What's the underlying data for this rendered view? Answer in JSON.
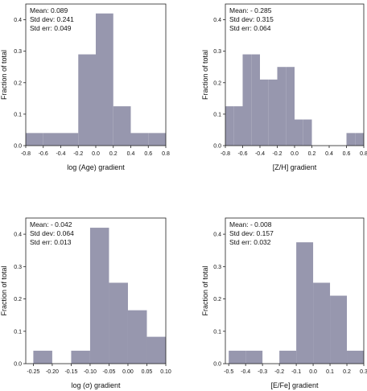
{
  "chart_data": [
    {
      "type": "bar",
      "bin_edges": [
        -0.8,
        -0.6,
        -0.4,
        -0.2,
        0.0,
        0.2,
        0.4,
        0.6,
        0.8
      ],
      "values": [
        0.04,
        0.04,
        0.04,
        0.29,
        0.42,
        0.125,
        0.04,
        0.04
      ],
      "xlabel": "log (Age) gradient",
      "ylabel": "Fraction of total",
      "xlim": [
        -0.8,
        0.8
      ],
      "ylim": [
        0,
        0.45
      ],
      "x_ticks": [
        -0.8,
        -0.6,
        -0.4,
        -0.2,
        0.0,
        0.2,
        0.4,
        0.6,
        0.8
      ],
      "x_tick_labels": [
        "-0.8",
        "-0.6",
        "-0.4",
        "-0.2",
        "0.0",
        "0.2",
        "0.4",
        "0.6",
        "0.8"
      ],
      "y_ticks": [
        0,
        0.1,
        0.2,
        0.3,
        0.4
      ],
      "y_tick_labels": [
        "0.0",
        "0.1",
        "0.2",
        "0.3",
        "0.4"
      ],
      "stats": [
        "Mean: 0.089",
        "Std dev: 0.241",
        "Std err: 0.049"
      ],
      "bar_color": "#9797ae"
    },
    {
      "type": "bar",
      "bin_edges": [
        -0.8,
        -0.7,
        -0.6,
        -0.5,
        -0.4,
        -0.3,
        -0.2,
        -0.1,
        0.0,
        0.1,
        0.2,
        0.3,
        0.4,
        0.5,
        0.6,
        0.7,
        0.8
      ],
      "values": [
        0.125,
        0.125,
        0.29,
        0.29,
        0.21,
        0.21,
        0.25,
        0.25,
        0.083,
        0.083,
        0,
        0,
        0,
        0,
        0.04,
        0.04
      ],
      "xlabel": "[Z/H] gradient",
      "ylabel": "Fraction of total",
      "xlim": [
        -0.8,
        0.8
      ],
      "ylim": [
        0,
        0.45
      ],
      "x_ticks": [
        -0.8,
        -0.6,
        -0.4,
        -0.2,
        0.0,
        0.2,
        0.4,
        0.6,
        0.8
      ],
      "x_tick_labels": [
        "-0.8",
        "-0.6",
        "-0.4",
        "-0.2",
        "0.0",
        "0.2",
        "0.4",
        "0.6",
        "0.8"
      ],
      "y_ticks": [
        0,
        0.1,
        0.2,
        0.3,
        0.4
      ],
      "y_tick_labels": [
        "0.0",
        "0.1",
        "0.2",
        "0.3",
        "0.4"
      ],
      "stats": [
        "Mean: - 0.285",
        "Std dev: 0.315",
        "Std err: 0.064"
      ],
      "bar_color": "#9797ae"
    },
    {
      "type": "bar",
      "bin_edges": [
        -0.25,
        -0.2,
        -0.15,
        -0.1,
        -0.05,
        0.0,
        0.05,
        0.1
      ],
      "values": [
        0.04,
        0,
        0.04,
        0.42,
        0.25,
        0.165,
        0.083
      ],
      "xlabel": "log (σ) gradient",
      "ylabel": "Fraction of total",
      "xlim": [
        -0.27,
        0.1
      ],
      "ylim": [
        0,
        0.45
      ],
      "x_ticks": [
        -0.25,
        -0.2,
        -0.15,
        -0.1,
        -0.05,
        0.0,
        0.05,
        0.1
      ],
      "x_tick_labels": [
        "-0.25",
        "-0.20",
        "-0.15",
        "-0.10",
        "-0.05",
        "0.00",
        "0.05",
        "0.10"
      ],
      "y_ticks": [
        0,
        0.1,
        0.2,
        0.3,
        0.4
      ],
      "y_tick_labels": [
        "0.0",
        "0.1",
        "0.2",
        "0.3",
        "0.4"
      ],
      "stats": [
        "Mean: - 0.042",
        "Std dev: 0.064",
        "Std err: 0.013"
      ],
      "bar_color": "#9797ae"
    },
    {
      "type": "bar",
      "bin_edges": [
        -0.5,
        -0.4,
        -0.3,
        -0.2,
        -0.1,
        0.0,
        0.1,
        0.2,
        0.3
      ],
      "values": [
        0.04,
        0.04,
        0,
        0.04,
        0.375,
        0.25,
        0.21,
        0.04
      ],
      "xlabel": "[E/Fe] gradient",
      "ylabel": "Fraction of total",
      "xlim": [
        -0.52,
        0.3
      ],
      "ylim": [
        0,
        0.45
      ],
      "x_ticks": [
        -0.5,
        -0.4,
        -0.3,
        -0.2,
        -0.1,
        0.0,
        0.1,
        0.2,
        0.3
      ],
      "x_tick_labels": [
        "-0.5",
        "-0.4",
        "-0.3",
        "-0.2",
        "-0.1",
        "0.0",
        "0.1",
        "0.2",
        "0.3"
      ],
      "y_ticks": [
        0,
        0.1,
        0.2,
        0.3,
        0.4
      ],
      "y_tick_labels": [
        "0.0",
        "0.1",
        "0.2",
        "0.3",
        "0.4"
      ],
      "stats": [
        "Mean: - 0.008",
        "Std dev: 0.157",
        "Std err: 0.032"
      ],
      "bar_color": "#9797ae"
    }
  ]
}
